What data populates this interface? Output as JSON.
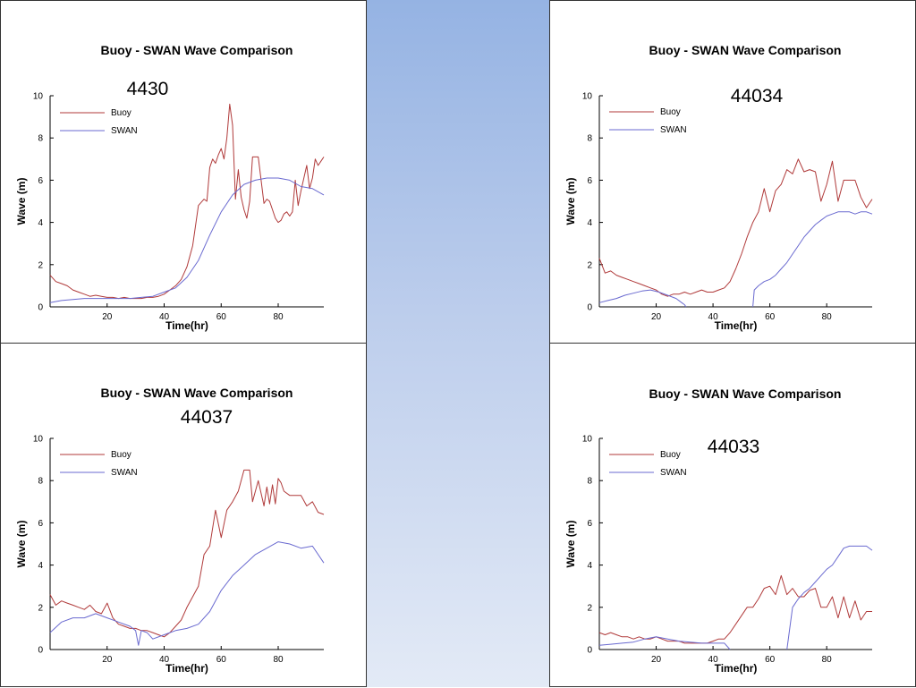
{
  "colors": {
    "buoy": "#b03a3a",
    "swan": "#6a6ad0",
    "axis": "#000000",
    "background_top": "#95b3e3",
    "background_bottom": "#e3eaf6"
  },
  "chart_data": [
    {
      "type": "line",
      "title": "Buoy - SWAN Wave Comparison",
      "station": "4430",
      "xlabel": "Time(hr)",
      "ylabel": "Wave (m)",
      "xlim": [
        0,
        96
      ],
      "ylim": [
        0,
        10
      ],
      "xticks": [
        "20",
        "40",
        "60",
        "80"
      ],
      "yticks": [
        "0",
        "2",
        "4",
        "6",
        "8",
        "10"
      ],
      "legend": {
        "position": "top-left",
        "entries": [
          "Buoy",
          "SWAN"
        ]
      },
      "series": [
        {
          "name": "Buoy",
          "x": [
            0,
            2,
            4,
            6,
            8,
            10,
            12,
            14,
            16,
            18,
            20,
            22,
            24,
            26,
            28,
            30,
            32,
            34,
            36,
            38,
            40,
            42,
            44,
            46,
            48,
            50,
            52,
            54,
            55,
            56,
            57,
            58,
            59,
            60,
            61,
            62,
            63,
            64,
            65,
            66,
            67,
            68,
            69,
            70,
            71,
            72,
            73,
            74,
            75,
            76,
            77,
            78,
            79,
            80,
            81,
            82,
            83,
            84,
            85,
            86,
            87,
            88,
            89,
            90,
            91,
            92,
            93,
            94,
            95,
            96
          ],
          "y": [
            1.5,
            1.2,
            1.1,
            1.0,
            0.8,
            0.7,
            0.6,
            0.5,
            0.55,
            0.5,
            0.45,
            0.45,
            0.4,
            0.45,
            0.4,
            0.4,
            0.4,
            0.45,
            0.45,
            0.5,
            0.6,
            0.8,
            1.0,
            1.3,
            1.9,
            2.9,
            4.8,
            5.1,
            5.0,
            6.6,
            7.0,
            6.8,
            7.2,
            7.5,
            7.0,
            8.0,
            9.6,
            8.6,
            5.1,
            6.5,
            5.2,
            4.6,
            4.2,
            5.0,
            7.1,
            7.1,
            7.1,
            6.0,
            4.9,
            5.1,
            5.0,
            4.6,
            4.2,
            4.0,
            4.1,
            4.4,
            4.5,
            4.3,
            4.5,
            6.0,
            4.8,
            5.5,
            6.1,
            6.7,
            5.6,
            6.1,
            7.0,
            6.7,
            6.9,
            7.1
          ]
        },
        {
          "name": "SWAN",
          "x": [
            0,
            4,
            8,
            12,
            16,
            20,
            24,
            28,
            32,
            36,
            40,
            44,
            48,
            52,
            56,
            60,
            64,
            68,
            72,
            76,
            80,
            84,
            88,
            92,
            96
          ],
          "y": [
            0.2,
            0.3,
            0.35,
            0.4,
            0.4,
            0.4,
            0.4,
            0.4,
            0.45,
            0.5,
            0.7,
            0.9,
            1.4,
            2.2,
            3.4,
            4.5,
            5.3,
            5.8,
            6.0,
            6.1,
            6.1,
            6.0,
            5.7,
            5.6,
            5.3
          ]
        }
      ]
    },
    {
      "type": "line",
      "title": "Buoy - SWAN Wave Comparison",
      "station": "44034",
      "xlabel": "Time(hr)",
      "ylabel": "Wave (m)",
      "xlim": [
        0,
        96
      ],
      "ylim": [
        0,
        10
      ],
      "xticks": [
        "20",
        "40",
        "60",
        "80"
      ],
      "yticks": [
        "0",
        "2",
        "4",
        "6",
        "8",
        "10"
      ],
      "legend": {
        "position": "top-left",
        "entries": [
          "Buoy",
          "SWAN"
        ]
      },
      "series": [
        {
          "name": "Buoy",
          "x": [
            0,
            2,
            4,
            6,
            8,
            10,
            12,
            14,
            16,
            18,
            20,
            22,
            24,
            26,
            28,
            30,
            32,
            34,
            36,
            38,
            40,
            42,
            44,
            46,
            48,
            50,
            52,
            54,
            56,
            58,
            60,
            62,
            64,
            66,
            68,
            70,
            72,
            74,
            76,
            78,
            80,
            82,
            84,
            86,
            88,
            90,
            92,
            94,
            96
          ],
          "y": [
            2.3,
            1.6,
            1.7,
            1.5,
            1.4,
            1.3,
            1.2,
            1.1,
            1.0,
            0.9,
            0.8,
            0.6,
            0.5,
            0.6,
            0.6,
            0.7,
            0.6,
            0.7,
            0.8,
            0.7,
            0.7,
            0.8,
            0.9,
            1.2,
            1.8,
            2.5,
            3.3,
            4.0,
            4.5,
            5.6,
            4.5,
            5.5,
            5.8,
            6.5,
            6.3,
            7.0,
            6.4,
            6.5,
            6.4,
            5.0,
            5.8,
            6.9,
            5.0,
            6.0,
            6.0,
            6.0,
            5.2,
            4.7,
            5.1
          ]
        },
        {
          "name": "SWAN",
          "x": [
            0,
            3,
            6,
            9,
            12,
            15,
            18,
            21,
            24,
            27,
            29,
            30,
            30.5
          ],
          "y": [
            0.2,
            0.3,
            0.4,
            0.55,
            0.65,
            0.75,
            0.8,
            0.7,
            0.55,
            0.4,
            0.2,
            0.1,
            0.0
          ]
        },
        {
          "name": "SWAN",
          "x": [
            54,
            54.5,
            56,
            58,
            60,
            62,
            64,
            66,
            68,
            70,
            72,
            74,
            76,
            78,
            80,
            82,
            84,
            86,
            88,
            90,
            92,
            94,
            96
          ],
          "y": [
            0.0,
            0.8,
            1.0,
            1.2,
            1.3,
            1.5,
            1.8,
            2.1,
            2.5,
            2.9,
            3.3,
            3.6,
            3.9,
            4.1,
            4.3,
            4.4,
            4.5,
            4.5,
            4.5,
            4.4,
            4.5,
            4.5,
            4.4
          ]
        }
      ]
    },
    {
      "type": "line",
      "title": "Buoy - SWAN Wave Comparison",
      "station": "44037",
      "xlabel": "Time(hr)",
      "ylabel": "Wave (m)",
      "xlim": [
        0,
        96
      ],
      "ylim": [
        0,
        10
      ],
      "xticks": [
        "20",
        "40",
        "60",
        "80"
      ],
      "yticks": [
        "0",
        "2",
        "4",
        "6",
        "8",
        "10"
      ],
      "legend": {
        "position": "top-left",
        "entries": [
          "Buoy",
          "SWAN"
        ]
      },
      "series": [
        {
          "name": "Buoy",
          "x": [
            0,
            2,
            4,
            6,
            8,
            10,
            12,
            14,
            16,
            18,
            20,
            22,
            24,
            26,
            28,
            30,
            32,
            34,
            36,
            38,
            40,
            42,
            44,
            46,
            48,
            50,
            52,
            54,
            56,
            58,
            60,
            62,
            64,
            66,
            68,
            70,
            71,
            72,
            73,
            74,
            75,
            76,
            77,
            78,
            79,
            80,
            81,
            82,
            84,
            86,
            88,
            90,
            92,
            94,
            96
          ],
          "y": [
            2.6,
            2.1,
            2.3,
            2.2,
            2.1,
            2.0,
            1.9,
            2.1,
            1.8,
            1.7,
            2.2,
            1.5,
            1.2,
            1.1,
            1.0,
            1.0,
            0.9,
            0.9,
            0.8,
            0.7,
            0.6,
            0.8,
            1.1,
            1.4,
            2.0,
            2.5,
            3.0,
            4.5,
            4.9,
            6.6,
            5.3,
            6.6,
            7.0,
            7.5,
            8.5,
            8.5,
            7.0,
            7.5,
            8.0,
            7.4,
            6.8,
            7.7,
            6.9,
            7.8,
            6.9,
            8.1,
            7.9,
            7.5,
            7.3,
            7.3,
            7.3,
            6.8,
            7.0,
            6.5,
            6.4
          ]
        },
        {
          "name": "SWAN",
          "x": [
            0,
            4,
            8,
            12,
            16,
            20,
            24,
            28,
            30,
            31,
            32,
            34,
            36,
            40,
            44,
            48,
            52,
            56,
            60,
            64,
            68,
            72,
            76,
            80,
            84,
            88,
            92,
            96
          ],
          "y": [
            0.8,
            1.3,
            1.5,
            1.5,
            1.7,
            1.5,
            1.3,
            1.1,
            0.9,
            0.2,
            0.9,
            0.8,
            0.5,
            0.7,
            0.9,
            1.0,
            1.2,
            1.8,
            2.8,
            3.5,
            4.0,
            4.5,
            4.8,
            5.1,
            5.0,
            4.8,
            4.9,
            4.1
          ]
        }
      ]
    },
    {
      "type": "line",
      "title": "Buoy - SWAN Wave Comparison",
      "station": "44033",
      "xlabel": "Time(hr)",
      "ylabel": "Wave (m)",
      "xlim": [
        0,
        96
      ],
      "ylim": [
        0,
        10
      ],
      "xticks": [
        "20",
        "40",
        "60",
        "80"
      ],
      "yticks": [
        "0",
        "2",
        "4",
        "6",
        "8",
        "10"
      ],
      "legend": {
        "position": "top-left",
        "entries": [
          "Buoy",
          "SWAN"
        ]
      },
      "series": [
        {
          "name": "Buoy",
          "x": [
            0,
            2,
            4,
            6,
            8,
            10,
            12,
            14,
            16,
            18,
            20,
            22,
            24,
            26,
            28,
            30,
            32,
            34,
            36,
            38,
            40,
            42,
            44,
            46,
            48,
            50,
            52,
            54,
            56,
            58,
            60,
            62,
            64,
            66,
            68,
            70,
            72,
            74,
            76,
            78,
            80,
            82,
            84,
            86,
            88,
            90,
            92,
            94,
            96
          ],
          "y": [
            0.8,
            0.7,
            0.8,
            0.7,
            0.6,
            0.6,
            0.5,
            0.6,
            0.5,
            0.5,
            0.6,
            0.5,
            0.4,
            0.4,
            0.4,
            0.3,
            0.3,
            0.3,
            0.3,
            0.3,
            0.4,
            0.5,
            0.5,
            0.8,
            1.2,
            1.6,
            2.0,
            2.0,
            2.4,
            2.9,
            3.0,
            2.6,
            3.5,
            2.6,
            2.9,
            2.5,
            2.5,
            2.8,
            2.9,
            2.0,
            2.0,
            2.5,
            1.5,
            2.5,
            1.5,
            2.3,
            1.4,
            1.8,
            1.8
          ]
        },
        {
          "name": "SWAN",
          "x": [
            0,
            4,
            8,
            12,
            16,
            20,
            24,
            28,
            32,
            36,
            40,
            44,
            46
          ],
          "y": [
            0.2,
            0.25,
            0.3,
            0.35,
            0.5,
            0.6,
            0.5,
            0.4,
            0.35,
            0.3,
            0.3,
            0.3,
            0.0
          ]
        },
        {
          "name": "SWAN",
          "x": [
            66,
            68,
            70,
            72,
            74,
            76,
            78,
            80,
            82,
            84,
            86,
            88,
            90,
            92,
            94,
            96
          ],
          "y": [
            0.0,
            2.0,
            2.4,
            2.7,
            2.9,
            3.2,
            3.5,
            3.8,
            4.0,
            4.4,
            4.8,
            4.9,
            4.9,
            4.9,
            4.9,
            4.7
          ]
        }
      ]
    }
  ]
}
